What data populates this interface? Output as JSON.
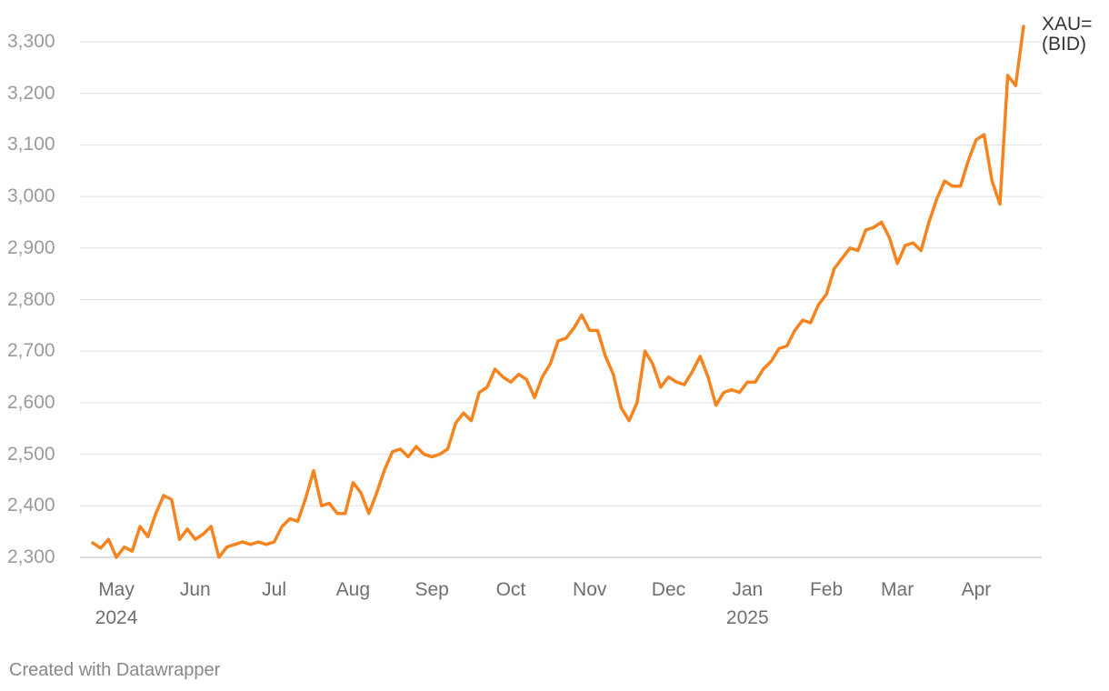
{
  "chart_data": {
    "type": "line",
    "categories": [
      null,
      null,
      null,
      "May\n2024",
      null,
      null,
      null,
      null,
      null,
      null,
      null,
      null,
      null,
      "Jun",
      null,
      null,
      null,
      null,
      null,
      null,
      null,
      null,
      null,
      "Jul",
      null,
      null,
      null,
      null,
      null,
      null,
      null,
      null,
      null,
      "Aug",
      null,
      null,
      null,
      null,
      null,
      null,
      null,
      null,
      null,
      "Sep",
      null,
      null,
      null,
      null,
      null,
      null,
      null,
      null,
      null,
      "Oct",
      null,
      null,
      null,
      null,
      null,
      null,
      null,
      null,
      null,
      "Nov",
      null,
      null,
      null,
      null,
      null,
      null,
      null,
      null,
      null,
      "Dec",
      null,
      null,
      null,
      null,
      null,
      null,
      null,
      null,
      null,
      "Jan\n2025",
      null,
      null,
      null,
      null,
      null,
      null,
      null,
      null,
      null,
      "Feb",
      null,
      null,
      null,
      null,
      null,
      null,
      null,
      null,
      "Mar",
      null,
      null,
      null,
      null,
      null,
      null,
      null,
      null,
      null,
      "Apr",
      null,
      null,
      null,
      null,
      null,
      null
    ],
    "series": [
      {
        "name": "XAU=\n(BID)",
        "color": "#f5841f",
        "values": [
          2328,
          2318,
          2335,
          2300,
          2320,
          2312,
          2360,
          2340,
          2385,
          2420,
          2412,
          2335,
          2355,
          2335,
          2345,
          2360,
          2300,
          2320,
          2325,
          2330,
          2325,
          2330,
          2325,
          2330,
          2360,
          2375,
          2370,
          2415,
          2468,
          2400,
          2405,
          2385,
          2385,
          2445,
          2425,
          2385,
          2425,
          2470,
          2505,
          2510,
          2495,
          2515,
          2500,
          2495,
          2500,
          2510,
          2560,
          2580,
          2565,
          2620,
          2630,
          2665,
          2650,
          2640,
          2655,
          2645,
          2610,
          2650,
          2675,
          2720,
          2725,
          2745,
          2770,
          2740,
          2740,
          2690,
          2655,
          2590,
          2565,
          2600,
          2700,
          2675,
          2630,
          2650,
          2640,
          2635,
          2660,
          2690,
          2650,
          2595,
          2620,
          2625,
          2620,
          2640,
          2640,
          2665,
          2680,
          2705,
          2710,
          2740,
          2760,
          2755,
          2790,
          2810,
          2860,
          2880,
          2900,
          2895,
          2935,
          2940,
          2950,
          2920,
          2870,
          2905,
          2910,
          2895,
          2950,
          2995,
          3030,
          3020,
          3020,
          3070,
          3110,
          3120,
          3030,
          2985,
          3235,
          3215,
          3330
        ]
      }
    ],
    "ylim": [
      2300,
      3300
    ],
    "yticks": [
      {
        "value": 2300,
        "label": "2,300"
      },
      {
        "value": 2400,
        "label": "2,400"
      },
      {
        "value": 2500,
        "label": "2,500"
      },
      {
        "value": 2600,
        "label": "2,600"
      },
      {
        "value": 2700,
        "label": "2,700"
      },
      {
        "value": 2800,
        "label": "2,800"
      },
      {
        "value": 2900,
        "label": "2,900"
      },
      {
        "value": 3000,
        "label": "3,000"
      },
      {
        "value": 3100,
        "label": "3,100"
      },
      {
        "value": 3200,
        "label": "3,200"
      },
      {
        "value": 3300,
        "label": "3,300"
      }
    ],
    "grid": true,
    "source": "Created with Datawrapper"
  }
}
